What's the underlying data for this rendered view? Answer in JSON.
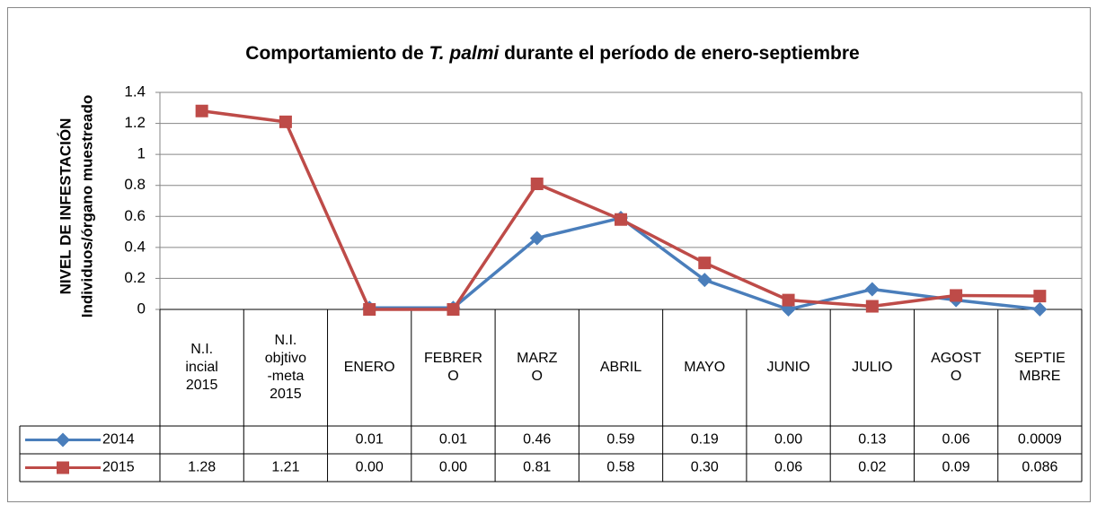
{
  "chart_data": {
    "type": "line",
    "title_parts": [
      "Comportamiento de ",
      "T. palmi",
      " durante el período de enero-septiembre"
    ],
    "ylabel": [
      "NIVEL DE INFESTACIÓN",
      "Individuos/órgano muestreado"
    ],
    "categories": [
      "N.I.\nincial\n2015",
      "N.I.\nobjtivo\n-meta\n2015",
      "ENERO",
      "FEBRER\nO",
      "MARZ\nO",
      "ABRIL",
      "MAYO",
      "JUNIO",
      "JULIO",
      "AGOST\nO",
      "SEPTIE\nMBRE"
    ],
    "series": [
      {
        "name": "2014",
        "color": "#4a7ebb",
        "marker": "diamond",
        "values": [
          null,
          null,
          0.01,
          0.01,
          0.46,
          0.59,
          0.19,
          0.0,
          0.13,
          0.06,
          0.0009
        ],
        "value_labels": [
          null,
          null,
          "0.01",
          "0.01",
          "0.46",
          "0.59",
          "0.19",
          "0.00",
          "0.13",
          "0.06",
          "0.0009"
        ]
      },
      {
        "name": "2015",
        "color": "#be4b48",
        "marker": "square",
        "values": [
          1.28,
          1.21,
          0.0,
          0.0,
          0.81,
          0.58,
          0.3,
          0.06,
          0.02,
          0.09,
          0.086
        ],
        "value_labels": [
          "1.28",
          "1.21",
          "0.00",
          "0.00",
          "0.81",
          "0.58",
          "0.30",
          "0.06",
          "0.02",
          "0.09",
          "0.086"
        ]
      }
    ],
    "ylim": [
      0,
      1.4
    ],
    "yticks": [
      0,
      0.2,
      0.4,
      0.6,
      0.8,
      1,
      1.2,
      1.4
    ],
    "grid": true
  }
}
